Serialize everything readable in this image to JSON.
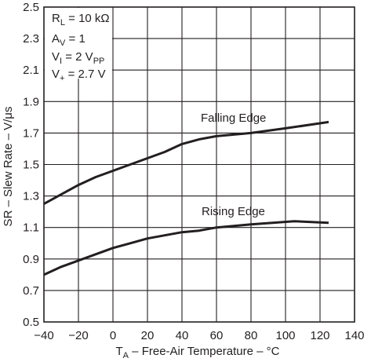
{
  "chart_data": {
    "type": "line",
    "xlabel": {
      "prefix": "T",
      "sub": "A",
      "rest": " – Free-Air Temperature – °C"
    },
    "ylabel": "SR – Slew Rate – V/μs",
    "xlim": [
      -40,
      140
    ],
    "ylim": [
      0.5,
      2.5
    ],
    "x_ticks": [
      -40,
      -20,
      0,
      20,
      40,
      60,
      80,
      100,
      120,
      140
    ],
    "y_ticks": [
      0.5,
      0.7,
      0.9,
      1.1,
      1.3,
      1.5,
      1.7,
      1.9,
      2.1,
      2.3,
      2.5
    ],
    "x_tick_labels": [
      "−40",
      "−20",
      "0",
      "20",
      "40",
      "60",
      "80",
      "100",
      "120",
      "140"
    ],
    "y_tick_labels": [
      "0.5",
      "0.7",
      "0.9",
      "1.1",
      "1.3",
      "1.5",
      "1.7",
      "1.9",
      "2.1",
      "2.3",
      "2.5"
    ],
    "grid": true,
    "line_color": "#231f20",
    "grid_color": "#231f20",
    "conditions": [
      {
        "main": "R",
        "sub": "L",
        "rest": " = 10 kΩ"
      },
      {
        "main": "A",
        "sub": "V",
        "rest": " = 1"
      },
      {
        "main": "V",
        "sub": "I",
        "rest": " = 2 V",
        "sub2": "PP"
      },
      {
        "main": "V",
        "sub": "+",
        "rest": " = 2.7 V"
      }
    ],
    "series": [
      {
        "name": "Falling Edge",
        "x": [
          -40,
          -30,
          -20,
          -10,
          0,
          10,
          20,
          30,
          40,
          50,
          60,
          80,
          100,
          125
        ],
        "y": [
          1.25,
          1.31,
          1.37,
          1.42,
          1.46,
          1.5,
          1.54,
          1.58,
          1.63,
          1.66,
          1.68,
          1.7,
          1.73,
          1.77
        ]
      },
      {
        "name": "Rising Edge",
        "x": [
          -40,
          -30,
          -20,
          -10,
          0,
          10,
          20,
          30,
          40,
          50,
          60,
          80,
          105,
          125
        ],
        "y": [
          0.8,
          0.85,
          0.89,
          0.93,
          0.97,
          1.0,
          1.03,
          1.05,
          1.07,
          1.08,
          1.1,
          1.12,
          1.14,
          1.13
        ]
      }
    ]
  }
}
